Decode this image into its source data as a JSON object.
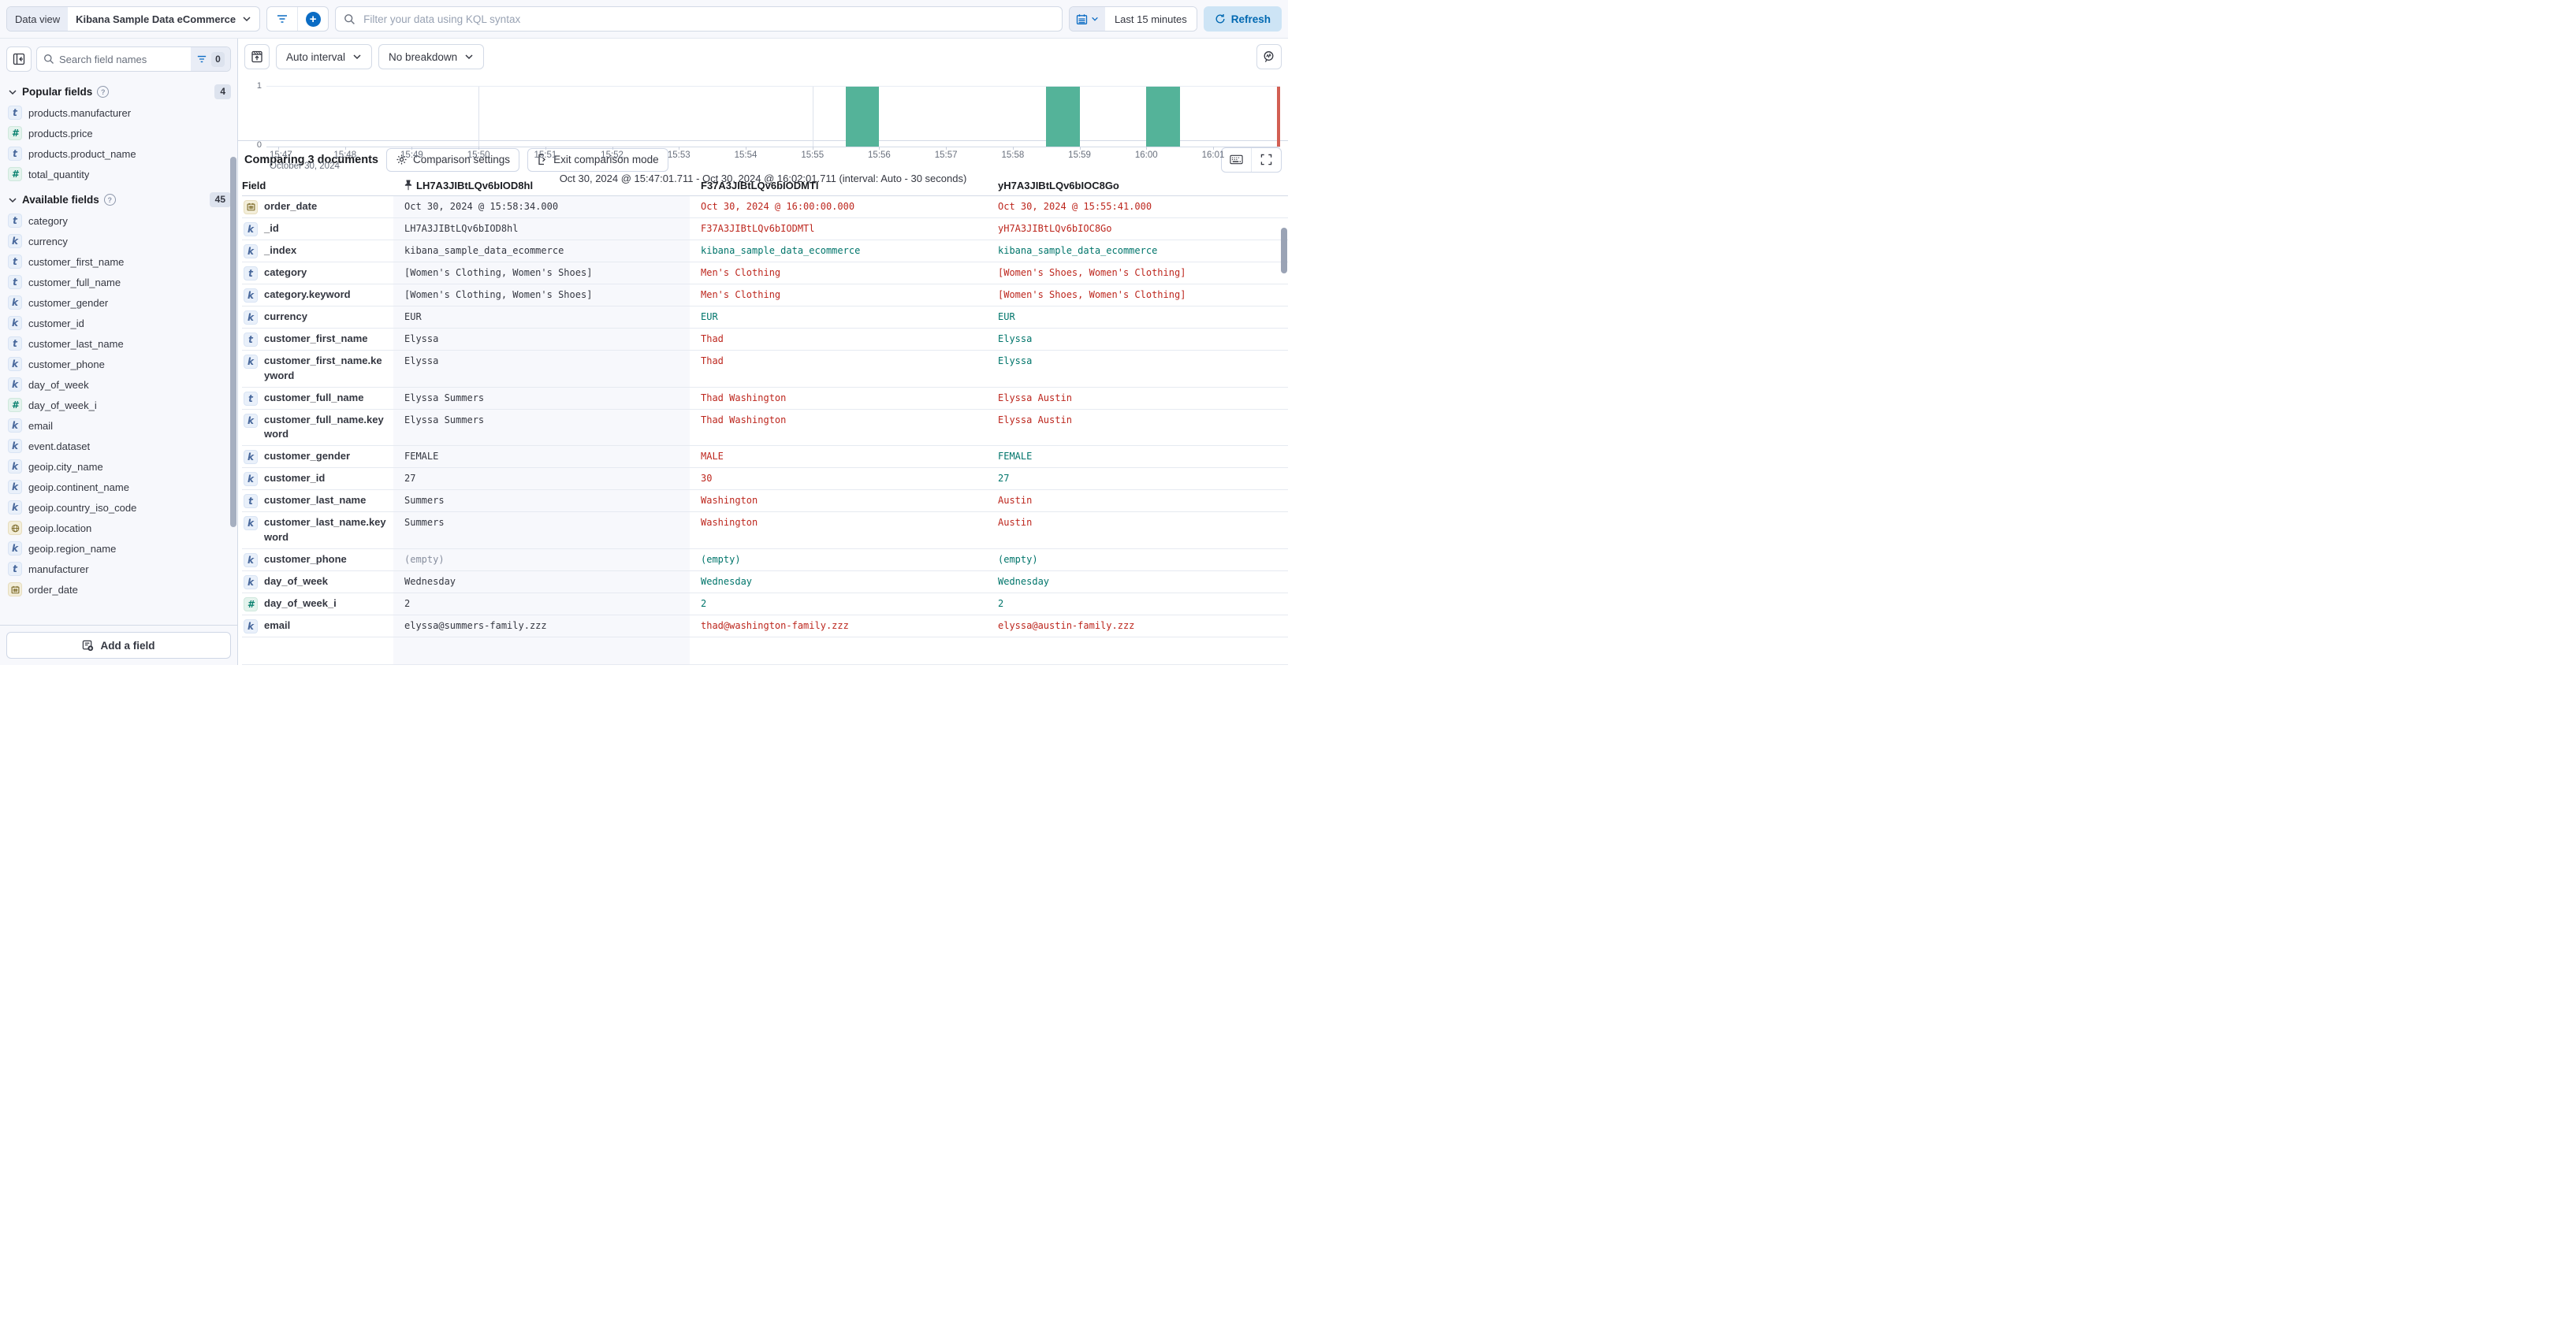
{
  "colors": {
    "accent_blue": "#0b6cc4",
    "bar_green": "#54b399",
    "diff_red": "#bd271e",
    "match_green": "#00756b",
    "panel_bg": "#f7f8fc",
    "border": "#d3dae6"
  },
  "topbar": {
    "data_view_label": "Data view",
    "data_view_value": "Kibana Sample Data eCommerce",
    "query_placeholder": "Filter your data using KQL syntax",
    "time_range": "Last 15 minutes",
    "refresh_label": "Refresh"
  },
  "sidebar": {
    "search_placeholder": "Search field names",
    "filter_count": "0",
    "popular": {
      "title": "Popular fields",
      "count": "4",
      "items": [
        {
          "name": "products.manufacturer",
          "type": "t"
        },
        {
          "name": "products.price",
          "type": "num"
        },
        {
          "name": "products.product_name",
          "type": "t"
        },
        {
          "name": "total_quantity",
          "type": "num"
        }
      ]
    },
    "available": {
      "title": "Available fields",
      "count": "45",
      "items": [
        {
          "name": "category",
          "type": "t"
        },
        {
          "name": "currency",
          "type": "k"
        },
        {
          "name": "customer_first_name",
          "type": "t"
        },
        {
          "name": "customer_full_name",
          "type": "t"
        },
        {
          "name": "customer_gender",
          "type": "k"
        },
        {
          "name": "customer_id",
          "type": "k"
        },
        {
          "name": "customer_last_name",
          "type": "t"
        },
        {
          "name": "customer_phone",
          "type": "k"
        },
        {
          "name": "day_of_week",
          "type": "k"
        },
        {
          "name": "day_of_week_i",
          "type": "num"
        },
        {
          "name": "email",
          "type": "k"
        },
        {
          "name": "event.dataset",
          "type": "k"
        },
        {
          "name": "geoip.city_name",
          "type": "k"
        },
        {
          "name": "geoip.continent_name",
          "type": "k"
        },
        {
          "name": "geoip.country_iso_code",
          "type": "k"
        },
        {
          "name": "geoip.location",
          "type": "geo"
        },
        {
          "name": "geoip.region_name",
          "type": "k"
        },
        {
          "name": "manufacturer",
          "type": "t"
        },
        {
          "name": "order_date",
          "type": "date"
        }
      ]
    },
    "add_field_label": "Add a field"
  },
  "chart_controls": {
    "interval_label": "Auto interval",
    "breakdown_label": "No breakdown"
  },
  "chart_data": {
    "type": "bar",
    "title": "Document count histogram",
    "ylim": [
      0,
      1
    ],
    "y_max_label": "1",
    "y_min_label": "0",
    "tick_labels": [
      "15:47",
      "15:48",
      "15:49",
      "15:50",
      "15:51",
      "15:52",
      "15:53",
      "15:54",
      "15:55",
      "15:56",
      "15:57",
      "15:58",
      "15:59",
      "16:00",
      "16:01"
    ],
    "gridline_minutes": [
      3,
      8,
      13
    ],
    "bars": [
      {
        "time": "15:55:30",
        "offset_min": 8.5,
        "value": 1
      },
      {
        "time": "15:58:30",
        "offset_min": 11.5,
        "value": 1
      },
      {
        "time": "16:00:00",
        "offset_min": 13,
        "value": 1
      }
    ],
    "bar_color": "#54b399",
    "date_label": "October 30, 2024",
    "caption": "Oct 30, 2024 @ 15:47:01.711 - Oct 30, 2024 @ 16:02:01.711 (interval: Auto - 30 seconds)"
  },
  "comparison": {
    "title": "Comparing 3 documents",
    "settings_label": "Comparison settings",
    "exit_label": "Exit comparison mode"
  },
  "table": {
    "field_header": "Field",
    "doc_columns": [
      "LH7A3JIBtLQv6bIOD8hl",
      "F37A3JIBtLQv6bIODMTl",
      "yH7A3JIBtLQv6bIOC8Go"
    ],
    "rows": [
      {
        "field": "order_date",
        "icon": "date",
        "cells": [
          {
            "t": "Oct 30, 2024 @ 15:58:34.000",
            "tone": "base"
          },
          {
            "t": "Oct 30, 2024 @ 16:00:00.000",
            "tone": "diff"
          },
          {
            "t": "Oct 30, 2024 @ 15:55:41.000",
            "tone": "diff"
          }
        ]
      },
      {
        "field": "_id",
        "icon": "k",
        "cells": [
          {
            "t": "LH7A3JIBtLQv6bIOD8hl",
            "tone": "base"
          },
          {
            "t": "F37A3JIBtLQv6bIODMTl",
            "tone": "diff"
          },
          {
            "t": "yH7A3JIBtLQv6bIOC8Go",
            "tone": "diff"
          }
        ]
      },
      {
        "field": "_index",
        "icon": "k",
        "cells": [
          {
            "t": "kibana_sample_data_ecommerce",
            "tone": "base"
          },
          {
            "t": "kibana_sample_data_ecommerce",
            "tone": "match"
          },
          {
            "t": "kibana_sample_data_ecommerce",
            "tone": "match"
          }
        ]
      },
      {
        "field": "category",
        "icon": "t",
        "cells": [
          {
            "t": "[Women's Clothing, Women's Shoes]",
            "tone": "base"
          },
          {
            "t": "Men's Clothing",
            "tone": "diff"
          },
          {
            "t": "[Women's Shoes, Women's Clothing]",
            "tone": "diff"
          }
        ]
      },
      {
        "field": "category.keyword",
        "icon": "k",
        "cells": [
          {
            "t": "[Women's Clothing, Women's Shoes]",
            "tone": "base"
          },
          {
            "t": "Men's Clothing",
            "tone": "diff"
          },
          {
            "t": "[Women's Shoes, Women's Clothing]",
            "tone": "diff"
          }
        ]
      },
      {
        "field": "currency",
        "icon": "k",
        "cells": [
          {
            "t": "EUR",
            "tone": "base"
          },
          {
            "t": "EUR",
            "tone": "match"
          },
          {
            "t": "EUR",
            "tone": "match"
          }
        ]
      },
      {
        "field": "customer_first_name",
        "icon": "t",
        "cells": [
          {
            "t": "Elyssa",
            "tone": "base"
          },
          {
            "t": "Thad",
            "tone": "diff"
          },
          {
            "t": "Elyssa",
            "tone": "match"
          }
        ]
      },
      {
        "field": "customer_first_name.keyword",
        "icon": "k",
        "cells": [
          {
            "t": "Elyssa",
            "tone": "base"
          },
          {
            "t": "Thad",
            "tone": "diff"
          },
          {
            "t": "Elyssa",
            "tone": "match"
          }
        ]
      },
      {
        "field": "customer_full_name",
        "icon": "t",
        "cells": [
          {
            "t": "Elyssa Summers",
            "tone": "base"
          },
          {
            "t": "Thad Washington",
            "tone": "diff"
          },
          {
            "t": "Elyssa Austin",
            "tone": "diff"
          }
        ]
      },
      {
        "field": "customer_full_name.keyword",
        "icon": "k",
        "cells": [
          {
            "t": "Elyssa Summers",
            "tone": "base"
          },
          {
            "t": "Thad Washington",
            "tone": "diff"
          },
          {
            "t": "Elyssa Austin",
            "tone": "diff"
          }
        ]
      },
      {
        "field": "customer_gender",
        "icon": "k",
        "cells": [
          {
            "t": "FEMALE",
            "tone": "base"
          },
          {
            "t": "MALE",
            "tone": "diff"
          },
          {
            "t": "FEMALE",
            "tone": "match"
          }
        ]
      },
      {
        "field": "customer_id",
        "icon": "k",
        "cells": [
          {
            "t": "27",
            "tone": "base"
          },
          {
            "t": "30",
            "tone": "diff"
          },
          {
            "t": "27",
            "tone": "match"
          }
        ]
      },
      {
        "field": "customer_last_name",
        "icon": "t",
        "cells": [
          {
            "t": "Summers",
            "tone": "base"
          },
          {
            "t": "Washington",
            "tone": "diff"
          },
          {
            "t": "Austin",
            "tone": "diff"
          }
        ]
      },
      {
        "field": "customer_last_name.keyword",
        "icon": "k",
        "cells": [
          {
            "t": "Summers",
            "tone": "base"
          },
          {
            "t": "Washington",
            "tone": "diff"
          },
          {
            "t": "Austin",
            "tone": "diff"
          }
        ]
      },
      {
        "field": "customer_phone",
        "icon": "k",
        "cells": [
          {
            "t": "(empty)",
            "tone": "muted"
          },
          {
            "t": "(empty)",
            "tone": "match"
          },
          {
            "t": "(empty)",
            "tone": "match"
          }
        ]
      },
      {
        "field": "day_of_week",
        "icon": "k",
        "cells": [
          {
            "t": "Wednesday",
            "tone": "base"
          },
          {
            "t": "Wednesday",
            "tone": "match"
          },
          {
            "t": "Wednesday",
            "tone": "match"
          }
        ]
      },
      {
        "field": "day_of_week_i",
        "icon": "num",
        "cells": [
          {
            "t": "2",
            "tone": "base"
          },
          {
            "t": "2",
            "tone": "match"
          },
          {
            "t": "2",
            "tone": "match"
          }
        ]
      },
      {
        "field": "email",
        "icon": "k",
        "cells": [
          {
            "t": "elyssa@summers-family.zzz",
            "tone": "base"
          },
          {
            "t": "thad@washington-family.zzz",
            "tone": "diff"
          },
          {
            "t": "elyssa@austin-family.zzz",
            "tone": "diff"
          }
        ]
      }
    ]
  }
}
